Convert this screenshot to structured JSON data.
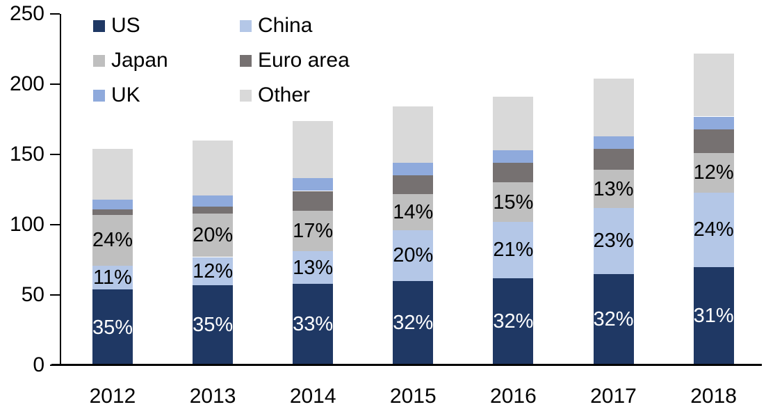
{
  "chart_data": {
    "type": "bar",
    "stacked": true,
    "title": "",
    "xlabel": "",
    "ylabel": "",
    "grid": false,
    "categories": [
      "2012",
      "2013",
      "2014",
      "2015",
      "2016",
      "2017",
      "2018"
    ],
    "series": [
      {
        "name": "US",
        "color": "#1F3864",
        "values": [
          54,
          57,
          58,
          60,
          62,
          65,
          70
        ],
        "labels": [
          "35%",
          "35%",
          "33%",
          "32%",
          "32%",
          "32%",
          "31%"
        ],
        "label_color": "#FFFFFF"
      },
      {
        "name": "China",
        "color": "#B4C7E7",
        "values": [
          17,
          20,
          23,
          36,
          40,
          47,
          53
        ],
        "labels": [
          "11%",
          "12%",
          "13%",
          "20%",
          "21%",
          "23%",
          "24%"
        ],
        "label_color": "#000000"
      },
      {
        "name": "Japan",
        "color": "#BFBFBF",
        "values": [
          36,
          31,
          29,
          26,
          28,
          27,
          28
        ],
        "labels": [
          "24%",
          "20%",
          "17%",
          "14%",
          "15%",
          "13%",
          "12%"
        ],
        "label_color": "#000000"
      },
      {
        "name": "Euro area",
        "color": "#767171",
        "values": [
          4,
          5,
          14,
          13,
          14,
          15,
          17
        ],
        "labels": null,
        "label_color": null
      },
      {
        "name": "UK",
        "color": "#8FAADC",
        "values": [
          7,
          8,
          9,
          9,
          9,
          9,
          9
        ],
        "labels": null,
        "label_color": null
      },
      {
        "name": "Other",
        "color": "#D9D9D9",
        "values": [
          36,
          39,
          41,
          40,
          38,
          41,
          45
        ],
        "labels": null,
        "label_color": null
      }
    ],
    "totals": [
      154,
      160,
      174,
      184,
      191,
      204,
      222
    ],
    "y_axis": {
      "min": 0,
      "max": 250,
      "tick_step": 50,
      "tick_labels": [
        "0",
        "50",
        "100",
        "150",
        "200",
        "250"
      ]
    },
    "legend": {
      "position": "top-left",
      "rows": [
        [
          "US",
          "China"
        ],
        [
          "Japan",
          "Euro area"
        ],
        [
          "UK",
          "Other"
        ]
      ]
    }
  }
}
